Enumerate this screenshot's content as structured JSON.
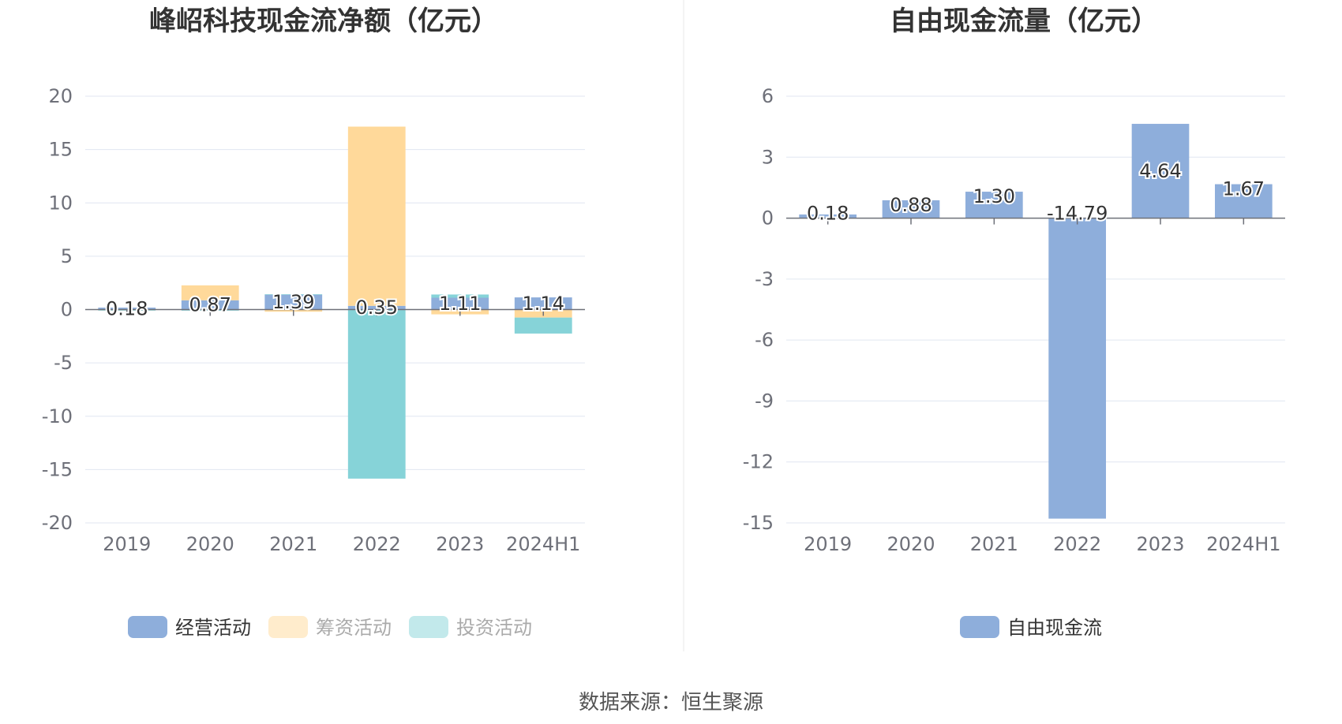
{
  "source_text": "数据来源：恒生聚源",
  "chart_data": [
    {
      "type": "bar",
      "stacked": true,
      "title": "峰岹科技现金流净额（亿元）",
      "categories": [
        "2019",
        "2020",
        "2021",
        "2022",
        "2023",
        "2024H1"
      ],
      "ylim": [
        -20,
        20
      ],
      "yticks": [
        20,
        15,
        10,
        5,
        0,
        -5,
        -10,
        -15,
        -20
      ],
      "grid": true,
      "legend_position": "bottom",
      "series": [
        {
          "name": "经营活动",
          "color": "#8eaedb",
          "values": [
            0.18,
            0.87,
            1.39,
            0.35,
            1.11,
            1.14
          ]
        },
        {
          "name": "筹资活动",
          "color": "#ffd99a",
          "values": [
            -0.05,
            1.4,
            -0.2,
            16.8,
            -0.45,
            -0.75
          ]
        },
        {
          "name": "投资活动",
          "color": "#86d3d8",
          "values": [
            -0.05,
            -0.1,
            0.05,
            -15.85,
            0.3,
            -1.5
          ]
        }
      ],
      "data_labels": [
        "0.18",
        "0.87",
        "1.39",
        "0.35",
        "1.11",
        "1.14"
      ]
    },
    {
      "type": "bar",
      "title": "自由现金流量（亿元）",
      "categories": [
        "2019",
        "2020",
        "2021",
        "2022",
        "2023",
        "2024H1"
      ],
      "ylim": [
        -15,
        6
      ],
      "yticks": [
        6,
        3,
        0,
        -3,
        -6,
        -9,
        -12,
        -15
      ],
      "grid": true,
      "legend_position": "bottom",
      "series": [
        {
          "name": "自由现金流",
          "color": "#8eaedb",
          "values": [
            0.18,
            0.88,
            1.3,
            -14.79,
            4.64,
            1.67
          ]
        }
      ],
      "data_labels": [
        "0.18",
        "0.88",
        "1.30",
        "-14.79",
        "4.64",
        "1.67"
      ]
    }
  ]
}
